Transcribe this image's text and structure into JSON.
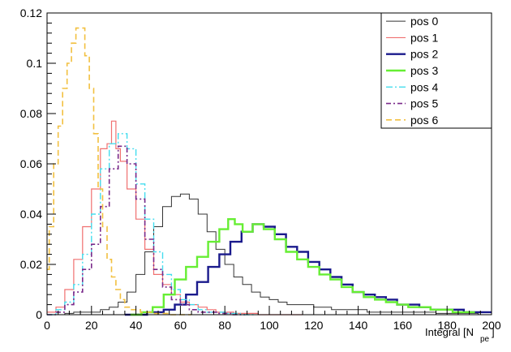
{
  "chart_data": {
    "type": "line",
    "xlabel": "Integral [N",
    "xlabel_sub": "pe",
    "xlabel_close": "]",
    "ylabel": "",
    "xlim": [
      0,
      200
    ],
    "ylim": [
      0,
      0.12
    ],
    "x_ticks": [
      0,
      20,
      40,
      60,
      80,
      100,
      120,
      140,
      160,
      180,
      200
    ],
    "x_tick_labels": [
      "0",
      "20",
      "40",
      "60",
      "80",
      "100",
      "120",
      "140",
      "160",
      "180",
      "200"
    ],
    "y_ticks": [
      0,
      0.02,
      0.04,
      0.06,
      0.08,
      0.1,
      0.12
    ],
    "y_tick_labels": [
      "0",
      "0.02",
      "0.04",
      "0.06",
      "0.08",
      "0.1",
      "0.12"
    ],
    "legend_position": "top-right",
    "grid": false,
    "series": [
      {
        "name": "pos 0",
        "color": "#333333",
        "dash": "",
        "width": 1,
        "x": [
          2,
          6,
          10,
          14,
          18,
          22,
          26,
          30,
          34,
          38,
          42,
          46,
          50,
          54,
          58,
          62,
          66,
          70,
          74,
          78,
          82,
          86,
          90,
          94,
          98,
          102,
          106,
          110,
          114,
          118,
          122,
          126,
          130,
          134,
          138,
          142,
          146,
          150,
          160,
          170,
          180,
          190,
          198
        ],
        "y": [
          0,
          0,
          0.0005,
          0.001,
          0.001,
          0.001,
          0.002,
          0.003,
          0.005,
          0.009,
          0.016,
          0.025,
          0.035,
          0.043,
          0.047,
          0.048,
          0.046,
          0.04,
          0.033,
          0.026,
          0.02,
          0.015,
          0.012,
          0.009,
          0.007,
          0.006,
          0.005,
          0.004,
          0.004,
          0.004,
          0.003,
          0.003,
          0.002,
          0.002,
          0.002,
          0.002,
          0.001,
          0.001,
          0.001,
          0.001,
          0.0005,
          0.0005,
          0
        ]
      },
      {
        "name": "pos 1",
        "color": "#f07070",
        "dash": "",
        "width": 1.2,
        "x": [
          2,
          6,
          10,
          14,
          18,
          22,
          26,
          28,
          30,
          32,
          34,
          38,
          42,
          46,
          50,
          54,
          58,
          62,
          66,
          70,
          74,
          78,
          82,
          86,
          90,
          100,
          110
        ],
        "y": [
          0.001,
          0.003,
          0.01,
          0.022,
          0.035,
          0.05,
          0.066,
          0.068,
          0.077,
          0.066,
          0.061,
          0.05,
          0.038,
          0.026,
          0.016,
          0.012,
          0.008,
          0.005,
          0.004,
          0.003,
          0.002,
          0.001,
          0.001,
          0.0005,
          0.0005,
          0,
          0
        ]
      },
      {
        "name": "pos 2",
        "color": "#1a1a8c",
        "dash": "",
        "width": 2.4,
        "x": [
          40,
          50,
          55,
          60,
          65,
          70,
          75,
          80,
          85,
          90,
          95,
          100,
          105,
          110,
          115,
          120,
          125,
          130,
          135,
          140,
          145,
          150,
          155,
          160,
          165,
          170,
          175,
          180,
          185,
          190,
          195,
          200
        ],
        "y": [
          0,
          0.001,
          0.002,
          0.004,
          0.008,
          0.013,
          0.019,
          0.024,
          0.029,
          0.033,
          0.036,
          0.035,
          0.032,
          0.027,
          0.025,
          0.021,
          0.018,
          0.015,
          0.012,
          0.009,
          0.008,
          0.007,
          0.006,
          0.004,
          0.004,
          0.003,
          0.002,
          0.002,
          0.002,
          0.001,
          0.001,
          0.001
        ]
      },
      {
        "name": "pos 3",
        "color": "#66ee33",
        "dash": "",
        "width": 2.4,
        "x": [
          40,
          45,
          50,
          55,
          60,
          65,
          70,
          75,
          80,
          83,
          86,
          90,
          95,
          100,
          105,
          110,
          115,
          120,
          125,
          130,
          135,
          140,
          145,
          150,
          155,
          160,
          165,
          170,
          175,
          180,
          185,
          190
        ],
        "y": [
          0,
          0.001,
          0.003,
          0.008,
          0.014,
          0.019,
          0.023,
          0.029,
          0.034,
          0.038,
          0.036,
          0.033,
          0.036,
          0.034,
          0.03,
          0.025,
          0.022,
          0.019,
          0.016,
          0.014,
          0.011,
          0.009,
          0.007,
          0.006,
          0.005,
          0.004,
          0.003,
          0.003,
          0.002,
          0.002,
          0.001,
          0.001
        ]
      },
      {
        "name": "pos 4",
        "color": "#44ddee",
        "dash": "8,3,2,3",
        "width": 1.4,
        "x": [
          2,
          6,
          10,
          14,
          18,
          22,
          26,
          30,
          34,
          38,
          42,
          46,
          50,
          54,
          58,
          62,
          66,
          70,
          74,
          78,
          84,
          90
        ],
        "y": [
          0,
          0.002,
          0.005,
          0.012,
          0.024,
          0.04,
          0.058,
          0.068,
          0.072,
          0.066,
          0.052,
          0.038,
          0.025,
          0.016,
          0.01,
          0.006,
          0.004,
          0.002,
          0.001,
          0.001,
          0.0005,
          0
        ]
      },
      {
        "name": "pos 5",
        "color": "#7a2a8a",
        "dash": "6,3,2,3",
        "width": 1.6,
        "x": [
          2,
          6,
          10,
          14,
          18,
          22,
          26,
          30,
          34,
          38,
          42,
          46,
          50,
          54,
          58,
          62,
          66,
          70,
          74,
          80,
          86
        ],
        "y": [
          0,
          0.001,
          0.004,
          0.009,
          0.018,
          0.028,
          0.043,
          0.058,
          0.067,
          0.06,
          0.046,
          0.03,
          0.018,
          0.011,
          0.006,
          0.004,
          0.002,
          0.001,
          0.001,
          0.0005,
          0
        ]
      },
      {
        "name": "pos 6",
        "color": "#f2c040",
        "dash": "7,4",
        "width": 1.6,
        "x": [
          0,
          2,
          4,
          6,
          8,
          10,
          12,
          14,
          16,
          18,
          20,
          22,
          24,
          26,
          28,
          30,
          32,
          34,
          36,
          40,
          44,
          50,
          60
        ],
        "y": [
          0.018,
          0.035,
          0.06,
          0.075,
          0.09,
          0.1,
          0.108,
          0.114,
          0.114,
          0.103,
          0.09,
          0.072,
          0.05,
          0.035,
          0.022,
          0.015,
          0.01,
          0.006,
          0.003,
          0.002,
          0.001,
          0.0005,
          0
        ]
      }
    ]
  }
}
